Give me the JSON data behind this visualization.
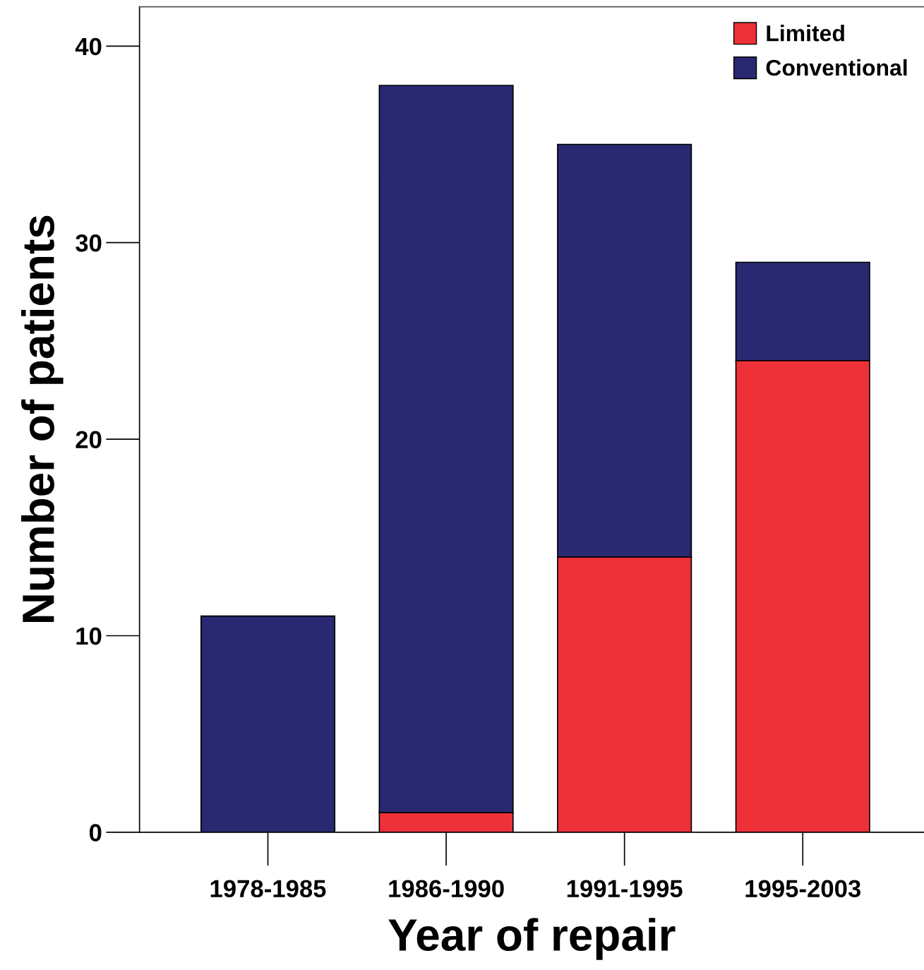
{
  "chart_data": {
    "type": "bar",
    "stacked": true,
    "xlabel": "Year of repair",
    "ylabel": "Number of patients",
    "categories": [
      "1978-1985",
      "1986-1990",
      "1991-1995",
      "1995-2003"
    ],
    "series": [
      {
        "name": "Limited",
        "color": "#ee3039",
        "values": [
          0,
          1,
          14,
          24
        ]
      },
      {
        "name": "Conventional",
        "color": "#292972",
        "values": [
          11,
          37,
          21,
          5
        ]
      }
    ],
    "ylim": [
      0,
      42
    ],
    "yticks": [
      0,
      10,
      20,
      30,
      40
    ],
    "grid": false,
    "legend": "top right"
  }
}
